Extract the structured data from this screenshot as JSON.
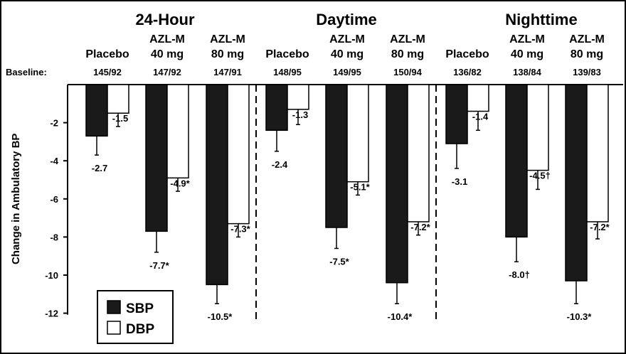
{
  "chart_data": {
    "type": "bar",
    "ylabel": "Change in Ambulatory BP",
    "ylim": [
      -12,
      0
    ],
    "yticks": [
      -2,
      -4,
      -6,
      -8,
      -10,
      -12
    ],
    "baseline_label": "Baseline:",
    "legend": {
      "items": [
        {
          "name": "SBP",
          "color": "#1a1a1a"
        },
        {
          "name": "DBP",
          "color": "#ffffff"
        }
      ],
      "placement": "bottom-left"
    },
    "panels": [
      {
        "title": "24-Hour",
        "groups": [
          {
            "label": [
              "",
              "Placebo"
            ],
            "baseline": "145/92",
            "sbp": -2.7,
            "sbp_err": 1.0,
            "sbp_label": "-2.7",
            "dbp": -1.5,
            "dbp_err": 0.7,
            "dbp_label": "-1.5"
          },
          {
            "label": [
              "AZL-M",
              "40 mg"
            ],
            "baseline": "147/92",
            "sbp": -7.7,
            "sbp_err": 1.1,
            "sbp_label": "-7.7*",
            "dbp": -4.9,
            "dbp_err": 0.7,
            "dbp_label": "-4.9*"
          },
          {
            "label": [
              "AZL-M",
              "80 mg"
            ],
            "baseline": "147/91",
            "sbp": -10.5,
            "sbp_err": 1.0,
            "sbp_label": "-10.5*",
            "dbp": -7.3,
            "dbp_err": 0.7,
            "dbp_label": "-7.3*"
          }
        ]
      },
      {
        "title": "Daytime",
        "groups": [
          {
            "label": [
              "",
              "Placebo"
            ],
            "baseline": "148/95",
            "sbp": -2.4,
            "sbp_err": 1.1,
            "sbp_label": "-2.4",
            "dbp": -1.3,
            "dbp_err": 0.8,
            "dbp_label": "-1.3"
          },
          {
            "label": [
              "AZL-M",
              "40 mg"
            ],
            "baseline": "149/95",
            "sbp": -7.5,
            "sbp_err": 1.1,
            "sbp_label": "-7.5*",
            "dbp": -5.1,
            "dbp_err": 0.7,
            "dbp_label": "-5.1*"
          },
          {
            "label": [
              "AZL-M",
              "80 mg"
            ],
            "baseline": "150/94",
            "sbp": -10.4,
            "sbp_err": 1.1,
            "sbp_label": "-10.4*",
            "dbp": -7.2,
            "dbp_err": 0.7,
            "dbp_label": "-7.2*"
          }
        ]
      },
      {
        "title": "Nighttime",
        "groups": [
          {
            "label": [
              "",
              "Placebo"
            ],
            "baseline": "136/82",
            "sbp": -3.1,
            "sbp_err": 1.3,
            "sbp_label": "-3.1",
            "dbp": -1.4,
            "dbp_err": 1.0,
            "dbp_label": "-1.4"
          },
          {
            "label": [
              "AZL-M",
              "40 mg"
            ],
            "baseline": "138/84",
            "sbp": -8.0,
            "sbp_err": 1.3,
            "sbp_label": "-8.0†",
            "dbp": -4.5,
            "dbp_err": 1.0,
            "dbp_label": "-4.5†"
          },
          {
            "label": [
              "AZL-M",
              "80 mg"
            ],
            "baseline": "139/83",
            "sbp": -10.3,
            "sbp_err": 1.2,
            "sbp_label": "-10.3*",
            "dbp": -7.2,
            "dbp_err": 0.9,
            "dbp_label": "-7.2*"
          }
        ]
      }
    ]
  }
}
